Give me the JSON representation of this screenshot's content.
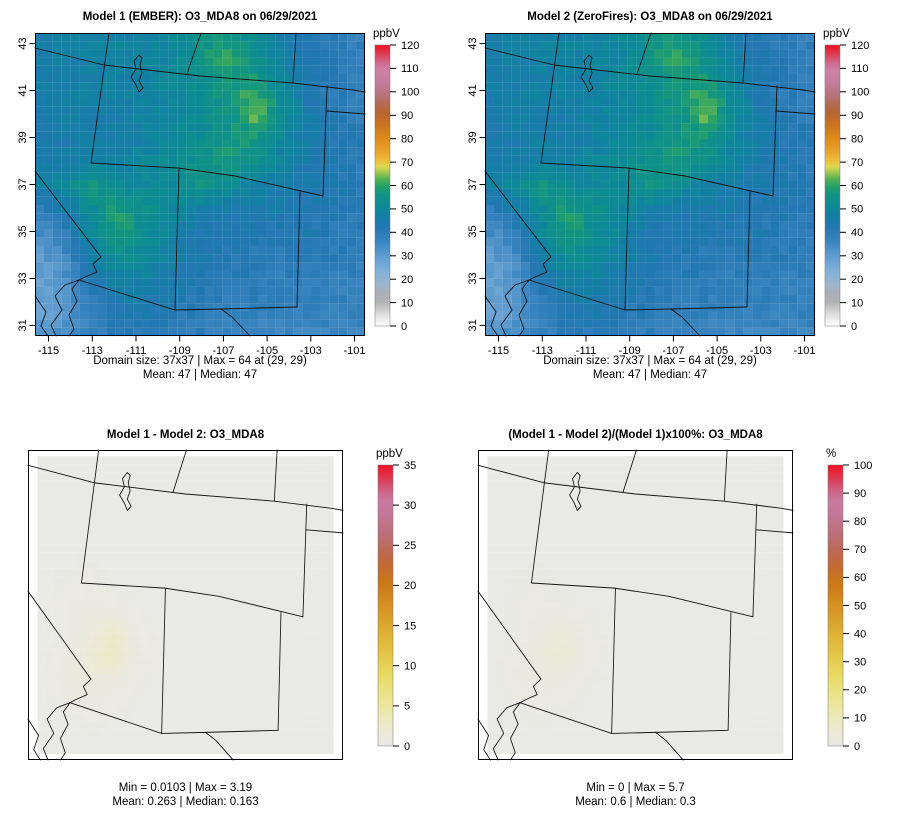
{
  "chart_data": {
    "type": "heatmap",
    "description": "2x2 panel model comparison tile plots of O3_MDA8 over the southwestern US",
    "grid_size": "37x37",
    "lon_range": [
      -115.62,
      -100.52
    ],
    "lat_range": [
      30.55,
      43.45
    ],
    "panels": [
      {
        "title": "Model 1 (EMBER): O3_MDA8 on 06/29/2021",
        "grid": "o3",
        "palette": "spectral",
        "vmax": 120,
        "noise": 2.2,
        "inset": [
          0,
          0
        ],
        "axes": true,
        "axes_x": [
          -115,
          -113,
          -111,
          -109,
          -107,
          -105,
          -103,
          -101
        ],
        "axes_y": [
          31,
          33,
          35,
          37,
          39,
          41,
          43
        ],
        "cb_label": "ppbV",
        "cb_ticks": [
          0,
          10,
          20,
          30,
          40,
          50,
          60,
          70,
          80,
          90,
          100,
          110,
          120
        ],
        "stats": [
          "Domain size: 37x37 | Max = 64 at (29, 29)",
          "Mean: 47 | Median: 47"
        ]
      },
      {
        "title": "Model 2 (ZeroFires): O3_MDA8 on 06/29/2021",
        "grid": "o3",
        "palette": "spectral",
        "vmax": 120,
        "noise": 2.2,
        "inset": [
          0,
          0
        ],
        "axes": true,
        "axes_x": [
          -115,
          -113,
          -111,
          -109,
          -107,
          -105,
          -103,
          -101
        ],
        "axes_y": [
          31,
          33,
          35,
          37,
          39,
          41,
          43
        ],
        "cb_label": "ppbV",
        "cb_ticks": [
          0,
          10,
          20,
          30,
          40,
          50,
          60,
          70,
          80,
          90,
          100,
          110,
          120
        ],
        "stats": [
          "Domain size: 37x37 | Max = 64 at (29, 29)",
          "Mean: 47 | Median: 47"
        ]
      },
      {
        "title": "Model 1 - Model 2: O3_MDA8",
        "grid": "diff",
        "palette": "hot",
        "vmax": 35,
        "noise": 0.06,
        "inset": [
          10,
          6
        ],
        "axes": false,
        "axes_x": [],
        "axes_y": [],
        "cb_label": "ppbV",
        "cb_ticks": [
          0,
          5,
          10,
          15,
          20,
          25,
          30,
          35
        ],
        "stats": [
          "Min = 0.0103 | Max = 3.19",
          "Mean: 0.263 |  Median: 0.163"
        ]
      },
      {
        "title": "(Model 1 - Model 2)/(Model 1)x100%: O3_MDA8",
        "grid": "pct",
        "palette": "hot",
        "vmax": 100,
        "noise": 0.12,
        "inset": [
          10,
          6
        ],
        "axes": false,
        "axes_x": [],
        "axes_y": [],
        "cb_label": "%",
        "cb_ticks": [
          0,
          10,
          20,
          30,
          40,
          50,
          60,
          70,
          80,
          90,
          100
        ],
        "stats": [
          "Min = 0 | Max = 5.7",
          "Mean: 0.6 |  Median: 0.3"
        ]
      }
    ],
    "grids": {
      "o3": [
        [
          46,
          47,
          47,
          48,
          48,
          50,
          54,
          57,
          52,
          46,
          42,
          40,
          38
        ],
        [
          46,
          47,
          47,
          48,
          48,
          50,
          56,
          60,
          54,
          47,
          42,
          40,
          38
        ],
        [
          45,
          46,
          47,
          47,
          48,
          50,
          53,
          58,
          58,
          50,
          43,
          40,
          38
        ],
        [
          45,
          46,
          46,
          47,
          48,
          49,
          52,
          56,
          64,
          53,
          44,
          40,
          38
        ],
        [
          44,
          45,
          46,
          46,
          48,
          50,
          52,
          55,
          59,
          50,
          44,
          42,
          40
        ],
        [
          44,
          45,
          46,
          47,
          50,
          52,
          55,
          58,
          54,
          48,
          44,
          42,
          40
        ],
        [
          46,
          50,
          57,
          52,
          50,
          52,
          56,
          52,
          48,
          46,
          44,
          42,
          40
        ],
        [
          38,
          44,
          52,
          58,
          54,
          50,
          46,
          44,
          44,
          44,
          42,
          42,
          40
        ],
        [
          33,
          37,
          50,
          58,
          53,
          48,
          44,
          42,
          42,
          42,
          42,
          40,
          40
        ],
        [
          30,
          33,
          45,
          52,
          50,
          46,
          44,
          42,
          40,
          40,
          40,
          40,
          38
        ],
        [
          29,
          31,
          41,
          47,
          46,
          44,
          42,
          40,
          40,
          38,
          38,
          38,
          38
        ],
        [
          28,
          31,
          39,
          43,
          44,
          42,
          40,
          38,
          38,
          37,
          38,
          38,
          36
        ],
        [
          30,
          33,
          37,
          40,
          40,
          40,
          38,
          37,
          36,
          36,
          36,
          36,
          36
        ]
      ],
      "diff": [
        [
          0,
          0,
          0,
          0,
          0,
          0,
          0,
          0,
          0,
          0,
          0,
          0,
          0
        ],
        [
          0,
          0,
          0,
          0,
          0,
          0,
          0,
          0,
          0,
          0,
          0,
          0,
          0
        ],
        [
          0,
          0,
          0,
          0,
          0,
          0,
          0,
          0,
          0,
          0,
          0,
          0,
          0
        ],
        [
          0,
          0,
          0,
          0,
          0,
          0,
          0,
          0,
          0,
          0,
          0,
          0,
          0
        ],
        [
          0,
          0,
          0.2,
          0,
          0,
          0,
          0,
          0,
          0,
          0,
          0,
          0,
          0
        ],
        [
          0,
          0.3,
          0.4,
          0.2,
          0,
          0,
          0,
          0,
          0,
          0,
          0,
          0,
          0
        ],
        [
          0,
          0.4,
          0.7,
          0.5,
          0.2,
          0,
          0,
          0,
          0,
          0,
          0,
          0,
          0
        ],
        [
          0,
          0.3,
          1.0,
          2.3,
          0.6,
          0.1,
          0,
          0,
          0,
          0,
          0,
          0,
          0
        ],
        [
          0,
          0.5,
          1.6,
          2.9,
          0.8,
          0.2,
          0,
          0.1,
          0,
          0,
          0,
          0,
          0
        ],
        [
          0,
          0.8,
          1.4,
          1.0,
          0.4,
          0.1,
          0,
          0,
          0,
          0,
          0,
          0,
          0
        ],
        [
          0,
          0.3,
          0.6,
          0.5,
          0.2,
          0,
          0,
          0,
          0,
          0,
          0,
          0,
          0
        ],
        [
          0,
          0,
          0.3,
          0.2,
          0,
          0,
          0,
          0,
          0,
          0,
          0,
          0,
          0
        ],
        [
          0,
          0,
          0,
          0,
          0,
          0,
          0,
          0,
          0,
          0,
          0,
          0,
          0
        ]
      ],
      "pct": [
        [
          0,
          0,
          0,
          0,
          0,
          0,
          0,
          0,
          0,
          0,
          0,
          0,
          0
        ],
        [
          0,
          0,
          0,
          0,
          0,
          0,
          0,
          0,
          0,
          0,
          0,
          0,
          0
        ],
        [
          0,
          0,
          0,
          0,
          0,
          0,
          0,
          0,
          0,
          0,
          0,
          0,
          0
        ],
        [
          0,
          0,
          0,
          0,
          0,
          0,
          0,
          0,
          0,
          0,
          0,
          0,
          0
        ],
        [
          0,
          0,
          0.4,
          0,
          0,
          0,
          0,
          0,
          0,
          0,
          0,
          0,
          0
        ],
        [
          0,
          0.6,
          0.8,
          0.4,
          0,
          0,
          0,
          0,
          0,
          0,
          0,
          0,
          0
        ],
        [
          0,
          0.8,
          1.4,
          1.0,
          0.4,
          0,
          0,
          0,
          0,
          0,
          0,
          0,
          0
        ],
        [
          0,
          0.6,
          2.0,
          4.2,
          1.2,
          0.2,
          0,
          0,
          0,
          0,
          0,
          0,
          0
        ],
        [
          0,
          1.0,
          3.0,
          5.5,
          1.6,
          0.4,
          0,
          0.2,
          0,
          0,
          0,
          0,
          0
        ],
        [
          0,
          1.6,
          2.6,
          2.0,
          0.8,
          0.2,
          0,
          0,
          0,
          0,
          0,
          0,
          0
        ],
        [
          0,
          0.6,
          1.2,
          1.0,
          0.4,
          0,
          0,
          0,
          0,
          0,
          0,
          0,
          0
        ],
        [
          0,
          0,
          0.6,
          0.4,
          0,
          0,
          0,
          0,
          0,
          0,
          0,
          0,
          0
        ],
        [
          0,
          0,
          0,
          0,
          0,
          0,
          0,
          0,
          0,
          0,
          0,
          0,
          0
        ]
      ]
    },
    "palettes": {
      "spectral": [
        [
          0,
          "#ffffff"
        ],
        [
          0.042,
          "#dedede"
        ],
        [
          0.083,
          "#b3b3b3"
        ],
        [
          0.117,
          "#a9aeb6"
        ],
        [
          0.15,
          "#9bb7cf"
        ],
        [
          0.2,
          "#7fafdb"
        ],
        [
          0.25,
          "#5f9ccf"
        ],
        [
          0.3,
          "#3a85c0"
        ],
        [
          0.35,
          "#2377b2"
        ],
        [
          0.392,
          "#1380a4"
        ],
        [
          0.433,
          "#0d8c94"
        ],
        [
          0.467,
          "#109384"
        ],
        [
          0.5,
          "#27a266"
        ],
        [
          0.525,
          "#5cb353"
        ],
        [
          0.55,
          "#aacb4e"
        ],
        [
          0.567,
          "#ddd94e"
        ],
        [
          0.583,
          "#ecc43e"
        ],
        [
          0.617,
          "#e9a62c"
        ],
        [
          0.667,
          "#dd8a1b"
        ],
        [
          0.717,
          "#cb731e"
        ],
        [
          0.758,
          "#b66631"
        ],
        [
          0.792,
          "#b26a55"
        ],
        [
          0.825,
          "#b87381"
        ],
        [
          0.867,
          "#c47d9c"
        ],
        [
          0.908,
          "#cd82a6"
        ],
        [
          0.933,
          "#cf6d94"
        ],
        [
          0.958,
          "#d84a63"
        ],
        [
          1,
          "#ef1021"
        ]
      ],
      "hot": [
        [
          0,
          "#e9e9e6"
        ],
        [
          0.04,
          "#ebe9da"
        ],
        [
          0.09,
          "#ece9c0"
        ],
        [
          0.14,
          "#ece79f"
        ],
        [
          0.2,
          "#eae180"
        ],
        [
          0.27,
          "#e8d65c"
        ],
        [
          0.34,
          "#e3c243"
        ],
        [
          0.42,
          "#dcab30"
        ],
        [
          0.5,
          "#d49122"
        ],
        [
          0.58,
          "#cb7717"
        ],
        [
          0.64,
          "#c36a33"
        ],
        [
          0.7,
          "#bb6a58"
        ],
        [
          0.76,
          "#bc707e"
        ],
        [
          0.82,
          "#c37795"
        ],
        [
          0.87,
          "#ca7ba1"
        ],
        [
          0.9,
          "#cd6a8e"
        ],
        [
          0.94,
          "#d84560"
        ],
        [
          1,
          "#ee1123"
        ]
      ]
    },
    "map_outlines": [
      [
        [
          0,
          15
        ],
        [
          69,
          32
        ]
      ],
      [
        [
          74,
          0
        ],
        [
          56,
          130
        ]
      ],
      [
        [
          69,
          32
        ],
        [
          165,
          43
        ],
        [
          258,
          50
        ],
        [
          318,
          57
        ],
        [
          330,
          59
        ]
      ],
      [
        [
          166,
          0
        ],
        [
          152,
          41
        ]
      ],
      [
        [
          261,
          0
        ],
        [
          258,
          50
        ]
      ],
      [
        [
          292,
          53
        ],
        [
          288,
          163
        ]
      ],
      [
        [
          291,
          78
        ],
        [
          330,
          81
        ]
      ],
      [
        [
          56,
          130
        ],
        [
          143,
          135
        ],
        [
          200,
          143
        ],
        [
          288,
          163
        ]
      ],
      [
        [
          144,
          135
        ],
        [
          140,
          277
        ]
      ],
      [
        [
          265,
          159
        ],
        [
          262,
          274
        ]
      ],
      [
        [
          262,
          274
        ],
        [
          186,
          276
        ]
      ],
      [
        [
          186,
          276
        ],
        [
          197,
          284
        ],
        [
          215,
          303
        ]
      ],
      [
        [
          140,
          277
        ],
        [
          186,
          276
        ]
      ],
      [
        [
          44,
          247
        ],
        [
          140,
          277
        ]
      ],
      [
        [
          0,
          138
        ],
        [
          66,
          224
        ]
      ],
      [
        [
          66,
          224
        ],
        [
          58,
          231
        ],
        [
          62,
          239
        ],
        [
          50,
          244
        ],
        [
          44,
          247
        ]
      ],
      [
        [
          44,
          247
        ],
        [
          30,
          252
        ],
        [
          20,
          263
        ],
        [
          27,
          277
        ],
        [
          16,
          292
        ],
        [
          21,
          303
        ]
      ],
      [
        [
          44,
          247
        ],
        [
          37,
          256
        ],
        [
          42,
          268
        ],
        [
          34,
          282
        ],
        [
          39,
          296
        ],
        [
          34,
          303
        ]
      ],
      [
        [
          0,
          263
        ],
        [
          11,
          279
        ],
        [
          6,
          293
        ],
        [
          13,
          303
        ]
      ],
      [
        [
          104,
          22
        ],
        [
          99,
          28
        ],
        [
          101,
          36
        ],
        [
          96,
          44
        ],
        [
          101,
          52
        ],
        [
          104,
          59
        ],
        [
          108,
          55
        ],
        [
          104,
          48
        ],
        [
          107,
          40
        ],
        [
          105,
          32
        ],
        [
          107,
          25
        ],
        [
          104,
          22
        ]
      ]
    ]
  }
}
